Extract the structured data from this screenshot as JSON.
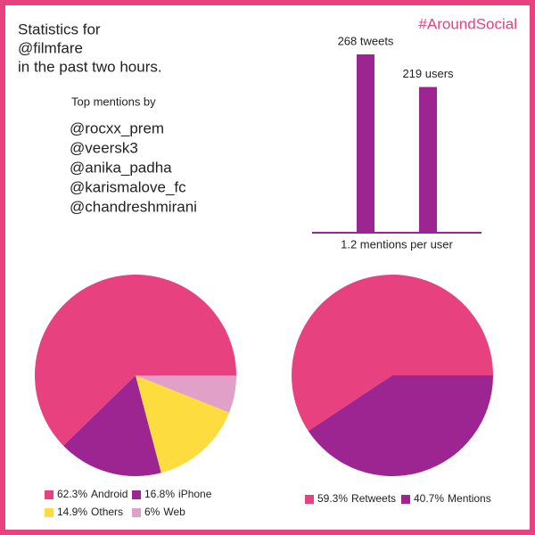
{
  "header": {
    "title_lines": [
      "Statistics for",
      "@filmfare",
      "in the past two hours."
    ],
    "hashtag": "#AroundSocial"
  },
  "top_mentions": {
    "heading": "Top mentions by",
    "handles": [
      "@rocxx_prem",
      "@veersk3",
      "@anika_padha",
      "@karismalove_fc",
      "@chandreshmirani"
    ]
  },
  "chart_data": [
    {
      "type": "bar",
      "values": [
        268,
        219
      ],
      "value_labels": [
        "268 tweets",
        "219 users"
      ],
      "color": "#9c2591",
      "xlabel": "1.2 mentions per user"
    },
    {
      "type": "pie",
      "categories": [
        "Android",
        "iPhone",
        "Others",
        "Web"
      ],
      "values": [
        62.3,
        16.8,
        14.9,
        6
      ],
      "value_labels": [
        "62.3%",
        "16.8%",
        "14.9%",
        "6%"
      ],
      "colors": [
        "#e8417f",
        "#9c2591",
        "#fddc3f",
        "#e0a0c8"
      ]
    },
    {
      "type": "pie",
      "categories": [
        "Retweets",
        "Mentions"
      ],
      "values": [
        59.3,
        40.7
      ],
      "value_labels": [
        "59.3%",
        "40.7%"
      ],
      "colors": [
        "#e8417f",
        "#9c2591"
      ]
    }
  ]
}
